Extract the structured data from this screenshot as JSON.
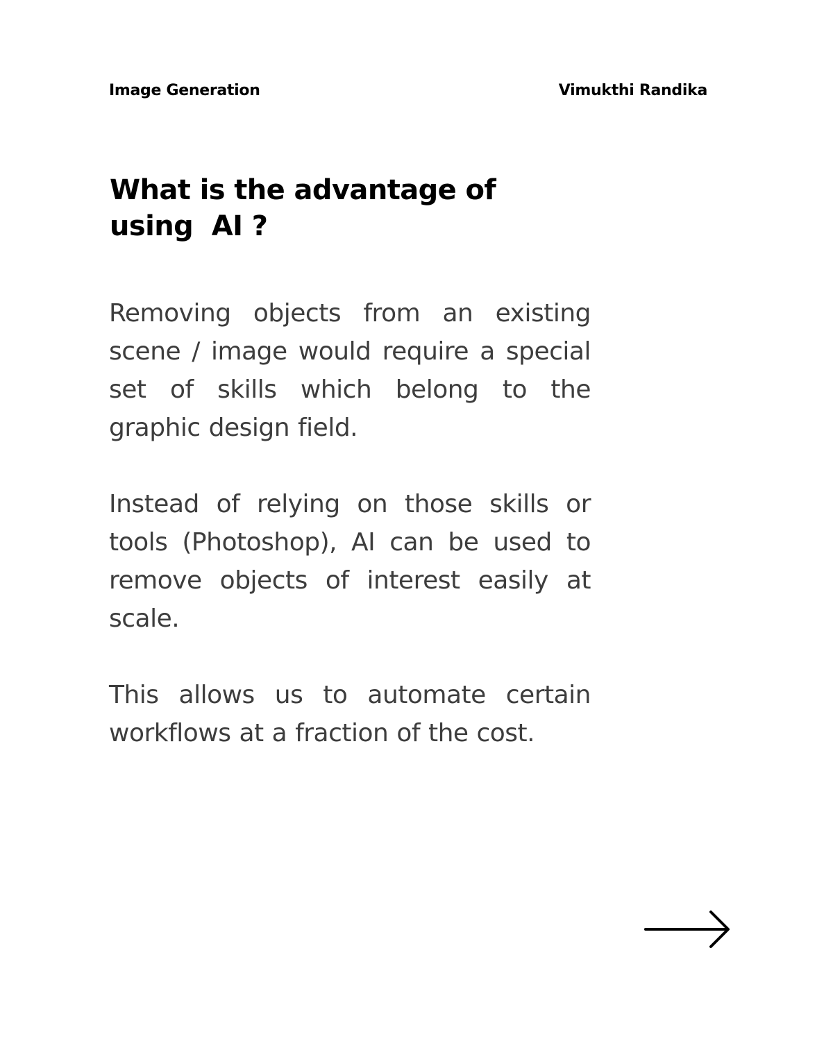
{
  "header": {
    "topic": "Image Generation",
    "author": "Vimukthi Randika"
  },
  "title": {
    "line1": "What is the advantage of",
    "line2": "using  AI ?"
  },
  "paragraphs": [
    "Removing objects from an existing scene / image would require a special set of skills which belong to the graphic design field.",
    "Instead of relying on those skills or tools (Photoshop), AI can be used to remove objects of interest easily at scale.",
    "This allows us to automate certain workflows at a fraction of the cost."
  ],
  "next_icon": "arrow-right-icon",
  "colors": {
    "text_dark": "#000000",
    "text_body": "#3d3d3d",
    "background": "#ffffff"
  }
}
